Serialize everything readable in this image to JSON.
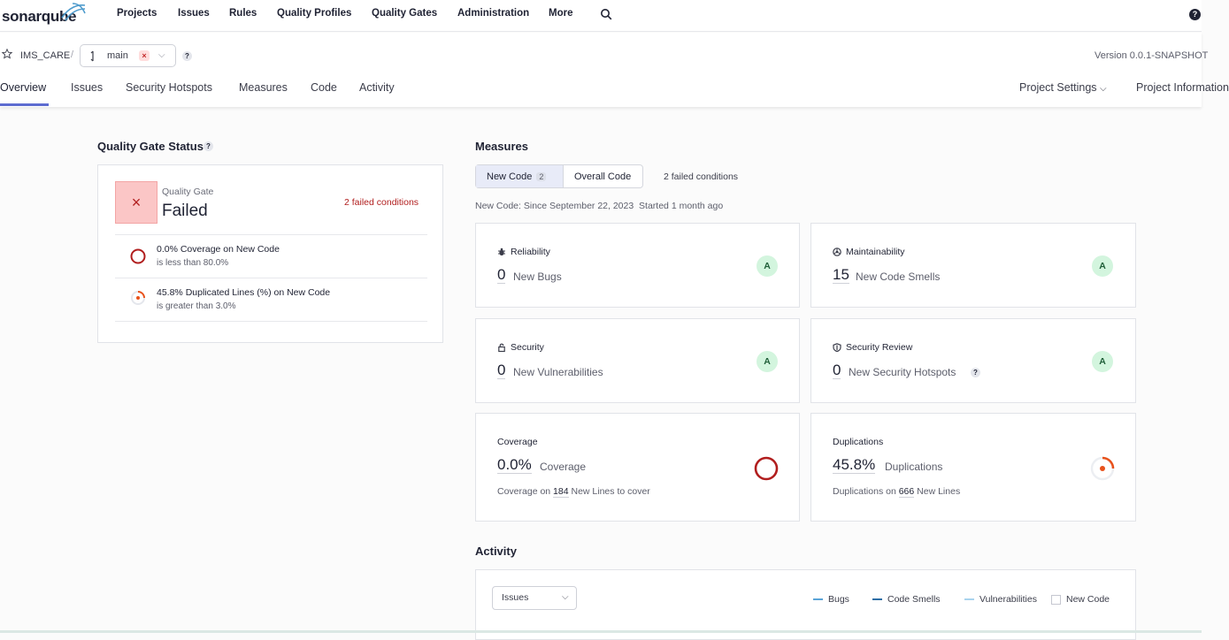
{
  "app": {
    "logo_text": "sonarqube"
  },
  "topnav": {
    "items": [
      "Projects",
      "Issues",
      "Rules",
      "Quality Profiles",
      "Quality Gates",
      "Administration",
      "More"
    ],
    "help_label": "?"
  },
  "project": {
    "name": "IMS_CARE",
    "separator": "/",
    "branch": "main",
    "branch_badge": "×",
    "help_label": "?",
    "version": "Version 0.0.1-SNAPSHOT"
  },
  "subtabs": {
    "left": [
      "Overview",
      "Issues",
      "Security Hotspots",
      "Measures",
      "Code",
      "Activity"
    ],
    "settings": "Project Settings",
    "info": "Project Information"
  },
  "quality_gate": {
    "section_title": "Quality Gate Status",
    "help_label": "?",
    "label": "Quality Gate",
    "status": "Failed",
    "status_icon": "×",
    "failed_conditions": "2 failed conditions",
    "conditions": [
      {
        "title": "0.0% Coverage on New Code",
        "subtitle": "is less than 80.0%"
      },
      {
        "title": "45.8% Duplicated Lines (%) on New Code",
        "subtitle": "is greater than 3.0%"
      }
    ]
  },
  "measures": {
    "section_title": "Measures",
    "new_code_tab": "New Code",
    "new_code_badge": "2",
    "overall_code_tab": "Overall Code",
    "failed_conditions": "2 failed conditions",
    "new_code_since": "New Code: Since September 22, 2023",
    "started": "Started 1 month ago",
    "cards": {
      "reliability": {
        "title": "Reliability",
        "value": "0",
        "unit": "New Bugs",
        "rating": "A"
      },
      "maintainability": {
        "title": "Maintainability",
        "value": "15",
        "unit": "New Code Smells",
        "rating": "A"
      },
      "security": {
        "title": "Security",
        "value": "0",
        "unit": "New Vulnerabilities",
        "rating": "A"
      },
      "security_review": {
        "title": "Security Review",
        "value": "0",
        "unit": "New Security Hotspots",
        "rating": "A",
        "help_label": "?"
      },
      "coverage": {
        "title": "Coverage",
        "value": "0.0%",
        "unit": "Coverage",
        "foot_prefix": "Coverage on",
        "foot_number": "184",
        "foot_suffix": "New Lines to cover",
        "fraction": 0.0
      },
      "duplications": {
        "title": "Duplications",
        "value": "45.8%",
        "unit": "Duplications",
        "foot_prefix": "Duplications on",
        "foot_number": "666",
        "foot_suffix": "New Lines",
        "fraction": 0.458
      }
    }
  },
  "activity": {
    "section_title": "Activity",
    "select_value": "Issues",
    "legend": [
      "Bugs",
      "Code Smells",
      "Vulnerabilities"
    ],
    "new_code_checkbox": "New Code"
  },
  "colors": {
    "accent": "#5d6cd0",
    "failed": "#b11e1e",
    "rating_a_bg": "#d3f5de",
    "duplication_orange": "#e8521c",
    "legend_bugs": "#5aa4d8",
    "legend_smells": "#2d6fa6",
    "legend_vulns": "#a9d4ee"
  }
}
